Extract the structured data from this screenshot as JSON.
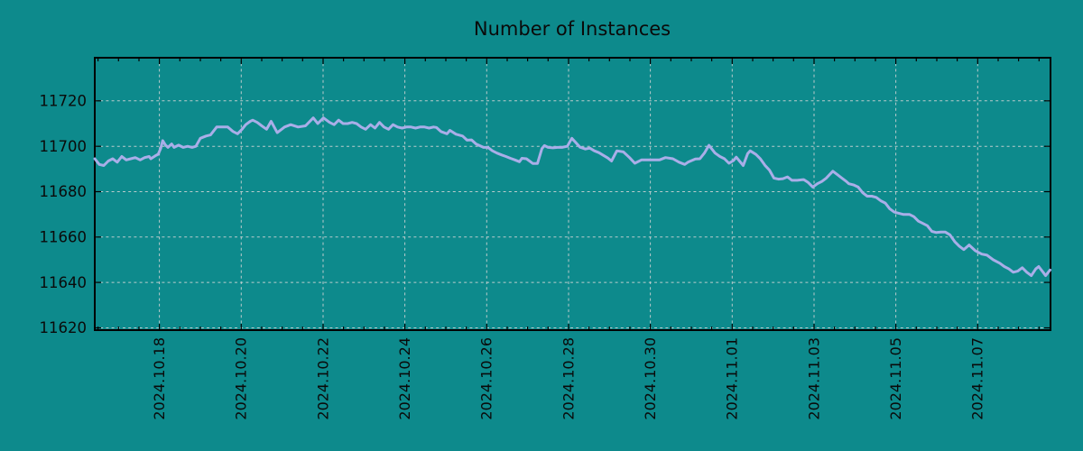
{
  "page": {
    "background_color": "#0d8a8c"
  },
  "chart_data": {
    "type": "line",
    "title": "Number of Instances",
    "grid": true,
    "legend": false,
    "x_axis": {
      "epoch": "days since 2024-10-16 00:00",
      "range_days": [
        0.42,
        23.78
      ],
      "tick_offsets_days": [
        2,
        4,
        6,
        8,
        10,
        12,
        14,
        16,
        18,
        20,
        22
      ],
      "tick_labels": [
        "2024.10.18",
        "2024.10.20",
        "2024.10.22",
        "2024.10.24",
        "2024.10.26",
        "2024.10.28",
        "2024.10.30",
        "2024.11.01",
        "2024.11.03",
        "2024.11.05",
        "2024.11.07"
      ],
      "minor_tick_step_days": 0.5
    },
    "y_axis": {
      "range": [
        11619,
        11739
      ],
      "ticks": [
        11620,
        11640,
        11660,
        11680,
        11700,
        11720
      ]
    },
    "style": {
      "background_color": "#0d8a8c",
      "line_color": "#a9aee8",
      "grid_color": "#cdd3d3",
      "axis_color": "#000000",
      "text_color": "#0a0a0a",
      "line_width": 3
    },
    "series": [
      {
        "name": "instances",
        "points": [
          [
            0.42,
            11694.5
          ],
          [
            0.53,
            11692
          ],
          [
            0.64,
            11691.5
          ],
          [
            0.75,
            11693.5
          ],
          [
            0.86,
            11694.5
          ],
          [
            0.97,
            11693
          ],
          [
            1.08,
            11695.5
          ],
          [
            1.19,
            11694
          ],
          [
            1.3,
            11694.5
          ],
          [
            1.41,
            11695
          ],
          [
            1.53,
            11694
          ],
          [
            1.64,
            11695
          ],
          [
            1.75,
            11695.5
          ],
          [
            1.79,
            11694.5
          ],
          [
            1.9,
            11695.8
          ],
          [
            1.97,
            11696.5
          ],
          [
            2.03,
            11699
          ],
          [
            2.08,
            11702.5
          ],
          [
            2.15,
            11700.5
          ],
          [
            2.21,
            11699.5
          ],
          [
            2.3,
            11701
          ],
          [
            2.36,
            11699.5
          ],
          [
            2.47,
            11700.5
          ],
          [
            2.58,
            11699.5
          ],
          [
            2.69,
            11700
          ],
          [
            2.8,
            11699.5
          ],
          [
            2.89,
            11700
          ],
          [
            3.0,
            11703.5
          ],
          [
            3.14,
            11704.5
          ],
          [
            3.25,
            11705
          ],
          [
            3.4,
            11708.5
          ],
          [
            3.54,
            11708.5
          ],
          [
            3.67,
            11708.5
          ],
          [
            3.8,
            11706.5
          ],
          [
            3.91,
            11705.5
          ],
          [
            4.02,
            11707.5
          ],
          [
            4.11,
            11709.5
          ],
          [
            4.22,
            11711
          ],
          [
            4.28,
            11711.5
          ],
          [
            4.39,
            11710.5
          ],
          [
            4.5,
            11709
          ],
          [
            4.62,
            11707.5
          ],
          [
            4.73,
            11711
          ],
          [
            4.88,
            11706
          ],
          [
            5.06,
            11708.5
          ],
          [
            5.21,
            11709.5
          ],
          [
            5.39,
            11708.5
          ],
          [
            5.57,
            11709
          ],
          [
            5.76,
            11712.5
          ],
          [
            5.87,
            11710
          ],
          [
            6.01,
            11712.5
          ],
          [
            6.16,
            11710.5
          ],
          [
            6.27,
            11709.5
          ],
          [
            6.38,
            11711.5
          ],
          [
            6.49,
            11710
          ],
          [
            6.6,
            11710
          ],
          [
            6.71,
            11710.5
          ],
          [
            6.82,
            11710
          ],
          [
            6.93,
            11708.5
          ],
          [
            7.04,
            11707.5
          ],
          [
            7.16,
            11709.5
          ],
          [
            7.27,
            11708
          ],
          [
            7.38,
            11710.5
          ],
          [
            7.49,
            11708.5
          ],
          [
            7.6,
            11707.5
          ],
          [
            7.71,
            11709.5
          ],
          [
            7.82,
            11708.5
          ],
          [
            7.93,
            11708
          ],
          [
            8.04,
            11708.5
          ],
          [
            8.15,
            11708.5
          ],
          [
            8.26,
            11708
          ],
          [
            8.37,
            11708.5
          ],
          [
            8.48,
            11708.5
          ],
          [
            8.59,
            11708
          ],
          [
            8.7,
            11708.5
          ],
          [
            8.77,
            11708.3
          ],
          [
            8.88,
            11706.5
          ],
          [
            9.03,
            11705.5
          ],
          [
            9.1,
            11707
          ],
          [
            9.25,
            11705.3
          ],
          [
            9.41,
            11704.5
          ],
          [
            9.52,
            11702.7
          ],
          [
            9.63,
            11702.8
          ],
          [
            9.74,
            11701
          ],
          [
            9.92,
            11699.5
          ],
          [
            10.03,
            11699.5
          ],
          [
            10.14,
            11698
          ],
          [
            10.25,
            11697
          ],
          [
            10.36,
            11696.2
          ],
          [
            10.47,
            11695.5
          ],
          [
            10.58,
            11694.7
          ],
          [
            10.69,
            11694
          ],
          [
            10.8,
            11693.2
          ],
          [
            10.86,
            11694.7
          ],
          [
            10.97,
            11694.5
          ],
          [
            11.13,
            11692.4
          ],
          [
            11.24,
            11692.4
          ],
          [
            11.35,
            11699
          ],
          [
            11.41,
            11700.3
          ],
          [
            11.5,
            11699.5
          ],
          [
            11.62,
            11699.3
          ],
          [
            11.73,
            11699.5
          ],
          [
            11.84,
            11699.5
          ],
          [
            11.97,
            11700
          ],
          [
            12.08,
            11703.5
          ],
          [
            12.28,
            11699.6
          ],
          [
            12.41,
            11698.8
          ],
          [
            12.52,
            11699.2
          ],
          [
            12.63,
            11698
          ],
          [
            12.74,
            11697.2
          ],
          [
            12.85,
            11696
          ],
          [
            12.96,
            11694.8
          ],
          [
            13.05,
            11693.5
          ],
          [
            13.18,
            11698
          ],
          [
            13.34,
            11697.5
          ],
          [
            13.49,
            11695
          ],
          [
            13.62,
            11692.5
          ],
          [
            13.78,
            11694
          ],
          [
            14.0,
            11694
          ],
          [
            14.22,
            11694
          ],
          [
            14.37,
            11695
          ],
          [
            14.55,
            11694.5
          ],
          [
            14.7,
            11693
          ],
          [
            14.84,
            11692
          ],
          [
            14.92,
            11693
          ],
          [
            15.1,
            11694.4
          ],
          [
            15.21,
            11694.5
          ],
          [
            15.32,
            11697
          ],
          [
            15.43,
            11700.4
          ],
          [
            15.58,
            11697
          ],
          [
            15.7,
            11695.5
          ],
          [
            15.81,
            11694.5
          ],
          [
            15.92,
            11692.5
          ],
          [
            16.03,
            11693.7
          ],
          [
            16.1,
            11695.2
          ],
          [
            16.27,
            11691.5
          ],
          [
            16.38,
            11696.8
          ],
          [
            16.44,
            11698
          ],
          [
            16.58,
            11696.4
          ],
          [
            16.69,
            11694.4
          ],
          [
            16.8,
            11691.6
          ],
          [
            16.91,
            11689.5
          ],
          [
            17.02,
            11686
          ],
          [
            17.13,
            11685.5
          ],
          [
            17.24,
            11685.7
          ],
          [
            17.35,
            11686.5
          ],
          [
            17.46,
            11685
          ],
          [
            17.59,
            11685
          ],
          [
            17.75,
            11685.3
          ],
          [
            17.86,
            11684
          ],
          [
            17.97,
            11682
          ],
          [
            18.08,
            11683.5
          ],
          [
            18.19,
            11684.5
          ],
          [
            18.3,
            11686
          ],
          [
            18.46,
            11689
          ],
          [
            18.57,
            11687.5
          ],
          [
            18.68,
            11686
          ],
          [
            18.79,
            11684.5
          ],
          [
            18.85,
            11683.5
          ],
          [
            18.96,
            11683
          ],
          [
            19.08,
            11682
          ],
          [
            19.19,
            11679.5
          ],
          [
            19.3,
            11678
          ],
          [
            19.41,
            11678
          ],
          [
            19.52,
            11677.5
          ],
          [
            19.63,
            11676
          ],
          [
            19.74,
            11675
          ],
          [
            19.85,
            11672.5
          ],
          [
            19.96,
            11671
          ],
          [
            20.07,
            11670.5
          ],
          [
            20.18,
            11670
          ],
          [
            20.33,
            11670
          ],
          [
            20.44,
            11669
          ],
          [
            20.55,
            11667
          ],
          [
            20.66,
            11666
          ],
          [
            20.77,
            11665
          ],
          [
            20.88,
            11662.5
          ],
          [
            20.99,
            11662
          ],
          [
            21.1,
            11662.2
          ],
          [
            21.21,
            11662.2
          ],
          [
            21.32,
            11661
          ],
          [
            21.44,
            11658
          ],
          [
            21.55,
            11656
          ],
          [
            21.66,
            11654.5
          ],
          [
            21.79,
            11656.5
          ],
          [
            21.94,
            11654
          ],
          [
            22.1,
            11652.5
          ],
          [
            22.23,
            11652
          ],
          [
            22.38,
            11650
          ],
          [
            22.54,
            11648.5
          ],
          [
            22.65,
            11647
          ],
          [
            22.76,
            11646
          ],
          [
            22.87,
            11644.5
          ],
          [
            22.98,
            11645
          ],
          [
            23.09,
            11646.5
          ],
          [
            23.2,
            11644.5
          ],
          [
            23.31,
            11643
          ],
          [
            23.42,
            11646
          ],
          [
            23.49,
            11647
          ],
          [
            23.6,
            11644.5
          ],
          [
            23.66,
            11643
          ],
          [
            23.77,
            11645.5
          ]
        ]
      }
    ]
  }
}
